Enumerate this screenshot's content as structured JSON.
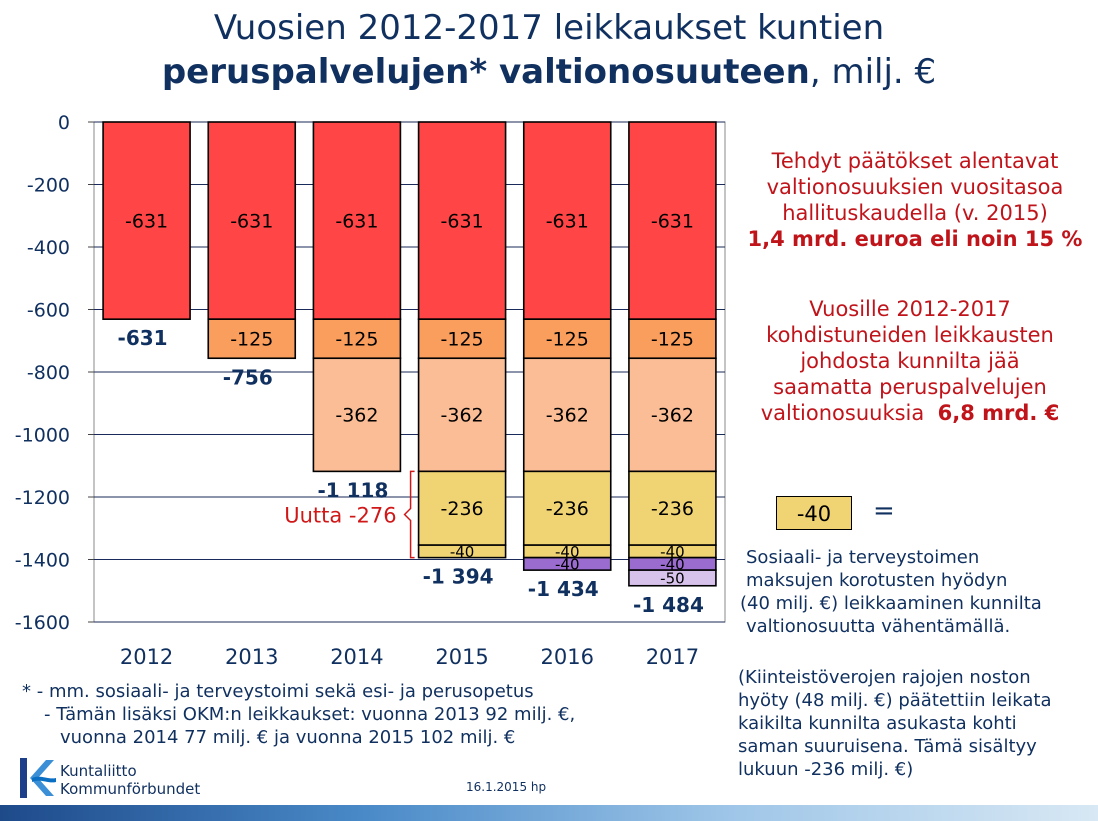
{
  "title": {
    "line1": "Vuosien 2012-2017 leikkaukset kuntien",
    "line2_bold": "peruspalvelujen* valtionosuuteen",
    "line2_rest": ", milj. €"
  },
  "chart_data": {
    "type": "bar",
    "stacked": true,
    "categories": [
      "2012",
      "2013",
      "2014",
      "2015",
      "2016",
      "2017"
    ],
    "series": [
      {
        "values": [
          -631,
          -631,
          -631,
          -631,
          -631,
          -631
        ],
        "color": "#ff4545"
      },
      {
        "values": [
          0,
          -125,
          -125,
          -125,
          -125,
          -125
        ],
        "color": "#fa9e5e"
      },
      {
        "values": [
          0,
          0,
          -362,
          -362,
          -362,
          -362
        ],
        "color": "#fbbd95"
      },
      {
        "values": [
          0,
          0,
          0,
          -236,
          -236,
          -236
        ],
        "color": "#f0d474"
      },
      {
        "values": [
          0,
          0,
          0,
          -40,
          -40,
          -40
        ],
        "color": "#f0d474"
      },
      {
        "values": [
          0,
          0,
          0,
          0,
          -40,
          -40
        ],
        "color": "#9a6cd0"
      },
      {
        "values": [
          0,
          0,
          0,
          0,
          0,
          -50
        ],
        "color": "#d7c2ec"
      }
    ],
    "totals": [
      "-631",
      "-756",
      "-1 118",
      "-1 394",
      "-1 434",
      "-1 484"
    ],
    "ylim": [
      -1600,
      0
    ],
    "yticks": [
      0,
      -200,
      -400,
      -600,
      -800,
      -1000,
      -1200,
      -1400,
      -1600
    ],
    "grid": true,
    "annotation": "Uutta -276",
    "xlabel": "",
    "ylabel": ""
  },
  "right_text": {
    "block1_lines": [
      "Tehdyt päätökset  alentavat",
      "valtionosuuksien vuositasoa",
      "hallituskaudella (v. 2015)"
    ],
    "block1_bold": "1,4 mrd. euroa eli noin 15 %",
    "block2_lines": [
      "Vuosille 2012-2017",
      "kohdistuneiden leikkausten",
      "johdosta kunnilta jää",
      "saamatta peruspalvelujen"
    ],
    "block2_last": "valtionosuuksia",
    "block2_bold": "6,8 mrd. €"
  },
  "legend": {
    "box_value": "-40",
    "equals": "=",
    "desc_lines": [
      "Sosiaali- ja terveystoimen",
      "maksujen korotusten hyödyn",
      "(40 milj. €) leikkaaminen  kunnilta",
      "valtionosuutta vähentämällä."
    ],
    "note_lines": [
      "(Kiinteistöverojen rajojen noston",
      "hyöty (48 milj. €) päätettiin leikata",
      "kaikilta kunnilta asukasta kohti",
      "saman suuruisena. Tämä sisältyy",
      "lukuun -236 milj. €)"
    ]
  },
  "footnote": {
    "line1": "* - mm. sosiaali- ja terveystoimi sekä esi- ja perusopetus",
    "line2": "- Tämän lisäksi  OKM:n leikkaukset: vuonna 2013 92 milj. €,",
    "line3": "vuonna 2014 77 milj. € ja vuonna 2015  102 milj. €"
  },
  "logo": {
    "line1": "Kuntaliitto",
    "line2": "Kommunförbundet"
  },
  "date_text": "16.1.2015 hp",
  "colors": {
    "title": "#10305f",
    "red_text": "#c0141b"
  }
}
